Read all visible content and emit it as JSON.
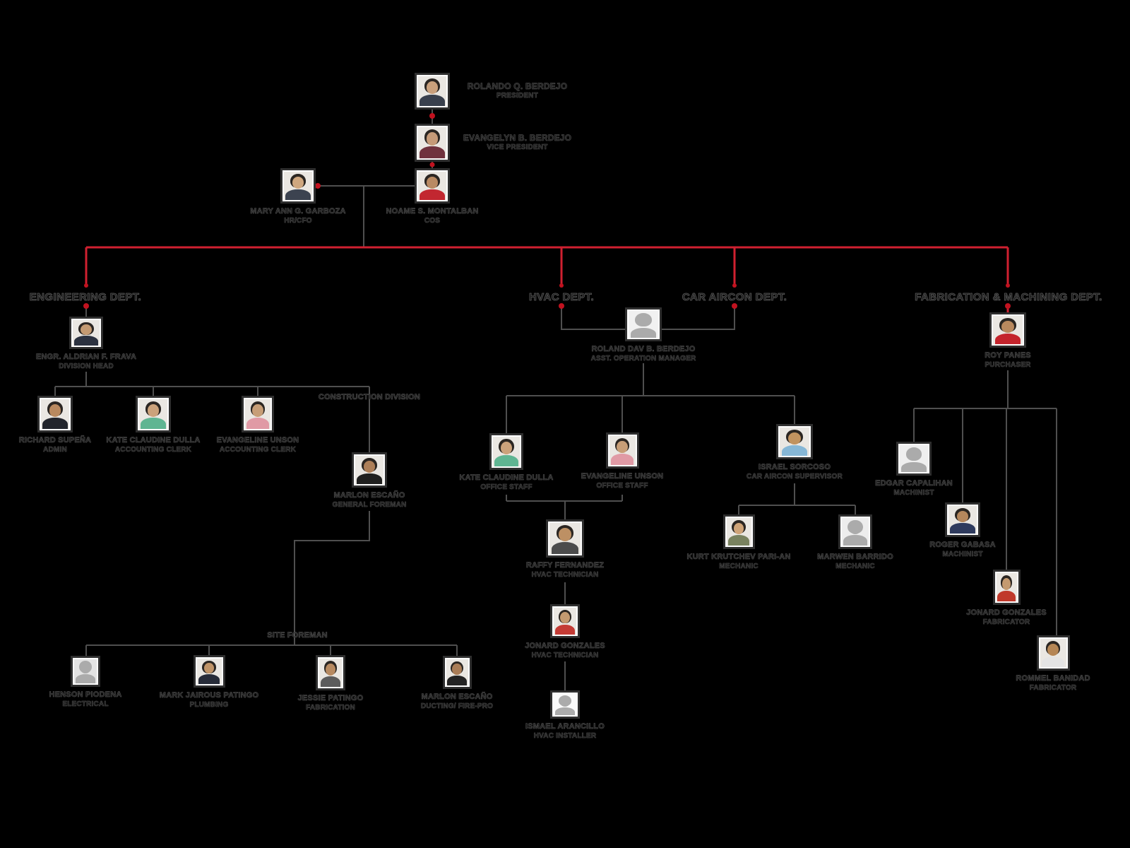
{
  "departments": [
    {
      "id": "engineering",
      "label": "ENGINEERING DEPT."
    },
    {
      "id": "hvac",
      "label": "HVAC DEPT."
    },
    {
      "id": "car_aircon",
      "label": "CAR AIRCON DEPT."
    },
    {
      "id": "fabrication",
      "label": "FABRICATION & MACHINING DEPT."
    }
  ],
  "division_labels": [
    "CONSTRUCTION DIVISION",
    "SITE FOREMAN"
  ],
  "people": [
    {
      "id": "rolando",
      "name": "ROLANDO Q. BERDEJO",
      "role": "PRESIDENT"
    },
    {
      "id": "evangelyn",
      "name": "EVANGELYN B. BERDEJO",
      "role": "VICE PRESIDENT"
    },
    {
      "id": "maryann",
      "name": "MARY ANN G. GARBOZA",
      "role": "HR/CFO"
    },
    {
      "id": "noame",
      "name": "NOAME S. MONTALBAN",
      "role": "COS"
    },
    {
      "id": "frava",
      "name": "ENGR. ALDRIAN F. FRAVA",
      "role": "DIVISION HEAD"
    },
    {
      "id": "richard",
      "name": "RICHARD SUPEÑA",
      "role": "ADMIN"
    },
    {
      "id": "kate_acct",
      "name": "KATE CLAUDINE DULLA",
      "role": "ACCOUNTING CLERK"
    },
    {
      "id": "evangeline_acct",
      "name": "EVANGELINE UNSON",
      "role": "ACCOUNTING CLERK"
    },
    {
      "id": "marlon_gf",
      "name": "MARLON ESCAÑO",
      "role": "GENERAL FOREMAN"
    },
    {
      "id": "henson",
      "name": "HENSON PIODENA",
      "role": "ELECTRICAL"
    },
    {
      "id": "mark",
      "name": "MARK JAIROUS PATINGO",
      "role": "PLUMBING"
    },
    {
      "id": "jessie",
      "name": "JESSIE PATINGO",
      "role": "FABRICATION"
    },
    {
      "id": "marlon_duct",
      "name": "MARLON ESCAÑO",
      "role": "DUCTING/ FIRE-PRO"
    },
    {
      "id": "roland_dav",
      "name": "ROLAND DAV B. BERDEJO",
      "role": "ASST. OPERATION MANAGER"
    },
    {
      "id": "kate_office",
      "name": "KATE CLAUDINE DULLA",
      "role": "OFFICE STAFF"
    },
    {
      "id": "evangeline_office",
      "name": "EVANGELINE UNSON",
      "role": "OFFICE STAFF"
    },
    {
      "id": "raffy",
      "name": "RAFFY FERNANDEZ",
      "role": "HVAC TECHNICIAN"
    },
    {
      "id": "jonard_hvac",
      "name": "JONARD GONZALES",
      "role": "HVAC TECHNICIAN"
    },
    {
      "id": "ismael",
      "name": "ISMAEL ARANCILLO",
      "role": "HVAC INSTALLER"
    },
    {
      "id": "israel",
      "name": "ISRAEL SORCOSO",
      "role": "CAR AIRCON SUPERVISOR"
    },
    {
      "id": "kurt",
      "name": "KURT KRUTCHEV PARI-AN",
      "role": "MECHANIC"
    },
    {
      "id": "marwen",
      "name": "MARWEN BARRIDO",
      "role": "MECHANIC"
    },
    {
      "id": "roy",
      "name": "ROY PANES",
      "role": "PURCHASER"
    },
    {
      "id": "edgar",
      "name": "EDGAR CAPALIHAN",
      "role": "MACHINIST"
    },
    {
      "id": "roger",
      "name": "ROGER GABASA",
      "role": "MACHINIST"
    },
    {
      "id": "jonard_fab",
      "name": "JONARD GONZALES",
      "role": "FABRICATOR"
    },
    {
      "id": "rommel",
      "name": "ROMMEL BANIDAD",
      "role": "FABRICATOR"
    }
  ],
  "colors": {
    "background": "#000000",
    "accent_red": "#d02030",
    "dot_red": "#c1121f",
    "line_gray": "#4f4f4f"
  }
}
